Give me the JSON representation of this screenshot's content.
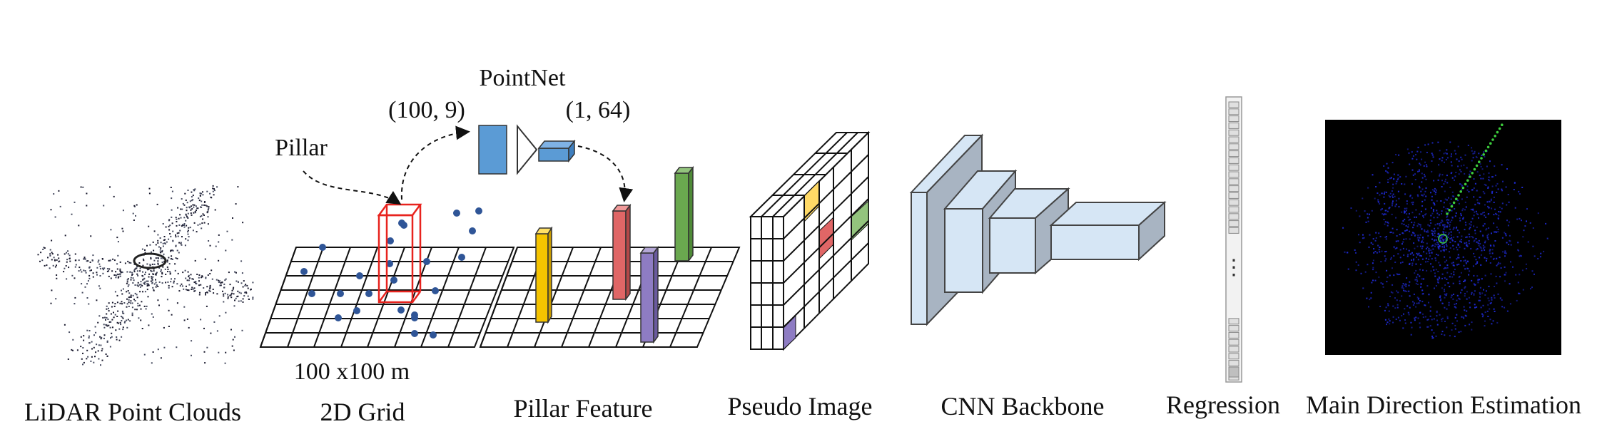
{
  "labels": {
    "lidar": "LiDAR Point Clouds",
    "grid_size": "100 x100 m",
    "grid": "2D Grid",
    "pillar": "Pillar",
    "pointnet": "PointNet",
    "pointnet_in": "(100, 9)",
    "pointnet_out": "(1, 64)",
    "pillar_feature": "Pillar Feature",
    "pseudo_image": "Pseudo Image",
    "cnn_backbone": "CNN Backbone",
    "regression": "Regression",
    "regression_dots": "⋮",
    "main_direction": "Main Direction Estimation"
  },
  "colors": {
    "pillar_box": "#e8231e",
    "point": "#2f5597",
    "pointnet_block": "#5b9bd5",
    "feature_yellow": "#f5c400",
    "feature_red": "#e06666",
    "feature_purple": "#8e7cc3",
    "feature_green": "#6aa84f",
    "pseudo_yellow": "#ffd966",
    "pseudo_red": "#e06666",
    "pseudo_green": "#93c47d",
    "pseudo_purple": "#8e7cc3",
    "cnn_front": "#d6e6f5",
    "cnn_side": "#a8b4c2",
    "scan_blue": "#1f2bd6",
    "scan_green": "#3ccc3c"
  },
  "icons": {
    "lidar_cloud": "lidar-point-cloud-icon",
    "scan": "bev-scan-icon"
  }
}
